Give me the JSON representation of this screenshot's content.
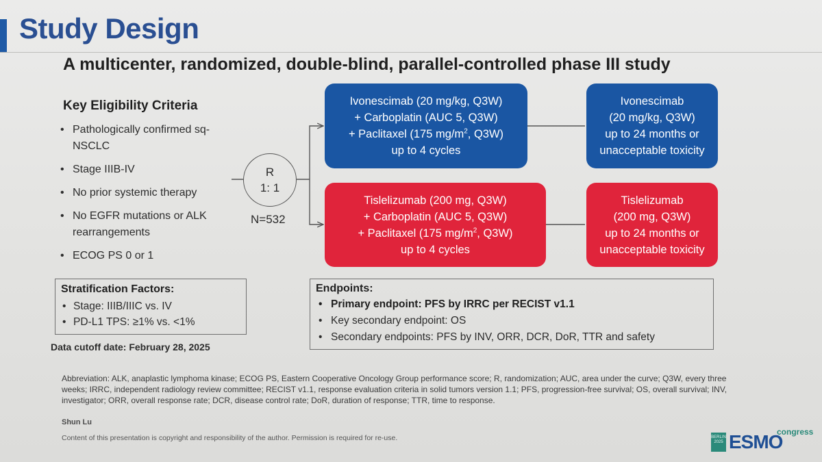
{
  "title": "Study Design",
  "subtitle": "A multicenter, randomized, double-blind, parallel-controlled phase III study",
  "eligibility": {
    "heading": "Key Eligibility Criteria",
    "items": [
      "Pathologically confirmed sq-NSCLC",
      "Stage IIIB-IV",
      "No prior systemic therapy",
      "No EGFR mutations or ALK rearrangements",
      "ECOG PS 0 or 1"
    ]
  },
  "randomization": {
    "symbol": "R",
    "ratio": "1: 1",
    "n": "N=532"
  },
  "arms": {
    "ivonescimab_induction": [
      "Ivonescimab (20 mg/kg, Q3W)",
      "+ Carboplatin (AUC 5, Q3W)",
      "+ Paclitaxel (175 mg/m",
      "2",
      ", Q3W)",
      "up to 4 cycles"
    ],
    "ivonescimab_maintenance": [
      "Ivonescimab",
      "(20 mg/kg, Q3W)",
      "up to 24 months or",
      "unacceptable toxicity"
    ],
    "tislelizumab_induction": [
      "Tislelizumab (200 mg, Q3W)",
      "+ Carboplatin (AUC 5, Q3W)",
      "+ Paclitaxel (175 mg/m",
      "2",
      ", Q3W)",
      "up to 4 cycles"
    ],
    "tislelizumab_maintenance": [
      "Tislelizumab",
      "(200 mg, Q3W)",
      "up to 24 months or",
      "unacceptable toxicity"
    ]
  },
  "stratification": {
    "heading": "Stratification Factors:",
    "items": [
      "Stage: IIIB/IIIC vs. IV",
      "PD-L1 TPS: ≥1% vs. <1%"
    ]
  },
  "cutoff": "Data cutoff date: February 28, 2025",
  "endpoints": {
    "heading": "Endpoints:",
    "primary": "Primary endpoint: PFS by IRRC per RECIST v1.1",
    "key_secondary": "Key secondary endpoint: OS",
    "secondary": "Secondary endpoints: PFS by INV, ORR, DCR, DoR, TTR and safety"
  },
  "abbreviation": "Abbreviation: ALK, anaplastic lymphoma kinase; ECOG PS, Eastern Cooperative Oncology Group performance score; R, randomization; AUC, area under the curve; Q3W, every three weeks; IRRC, independent radiology review committee; RECIST v1.1, response evaluation criteria in solid tumors version 1.1; PFS, progression-free survival; OS, overall survival; INV, investigator; ORR, overall response rate; DCR, disease control rate; DoR, duration of response; TTR, time to response.",
  "author": "Shun Lu",
  "copyright": "Content of this presentation is copyright and responsibility of the author. Permission is required for re-use.",
  "logo": {
    "badge_lines": [
      "BERLIN",
      "2025"
    ],
    "name": "ESMO",
    "suffix": "congress"
  },
  "bullet": "•",
  "colors": {
    "title": "#2a4f92",
    "blue_arm": "#1a56a3",
    "red_arm": "#e0243b"
  }
}
